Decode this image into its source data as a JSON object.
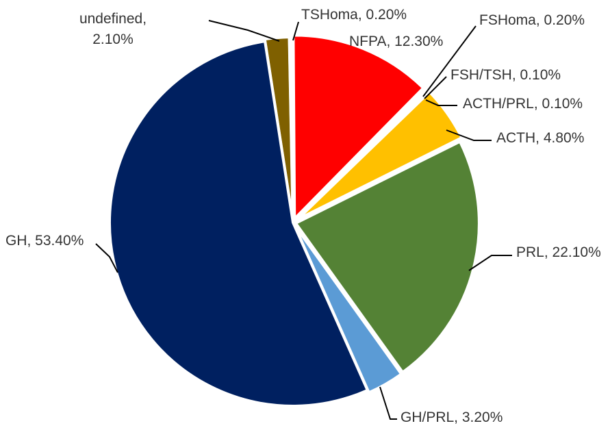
{
  "chart_data": {
    "type": "pie",
    "title": "",
    "slices": [
      {
        "label": "undefined",
        "value": 2.1,
        "value_text": "2.10%",
        "color": "#7f6000"
      },
      {
        "label": "TSHoma",
        "value": 0.2,
        "value_text": "0.20%",
        "color": "#c0504d"
      },
      {
        "label": "NFPA",
        "value": 12.3,
        "value_text": "12.30%",
        "color": "#ff0000"
      },
      {
        "label": "FSHoma",
        "value": 0.2,
        "value_text": "0.20%",
        "color": "#9bbb59"
      },
      {
        "label": "FSH/TSH",
        "value": 0.1,
        "value_text": "0.10%",
        "color": "#8064a2"
      },
      {
        "label": "ACTH/PRL",
        "value": 0.1,
        "value_text": "0.10%",
        "color": "#4bacc6"
      },
      {
        "label": "ACTH",
        "value": 4.8,
        "value_text": "4.80%",
        "color": "#ffc000"
      },
      {
        "label": "PRL",
        "value": 22.1,
        "value_text": "22.10%",
        "color": "#548235"
      },
      {
        "label": "GH/PRL",
        "value": 3.2,
        "value_text": "3.20%",
        "color": "#5b9bd5"
      },
      {
        "label": "GH",
        "value": 53.4,
        "value_text": "53.40%",
        "color": "#002060"
      }
    ],
    "legend": "none",
    "data_labels": "outside with leader lines"
  }
}
